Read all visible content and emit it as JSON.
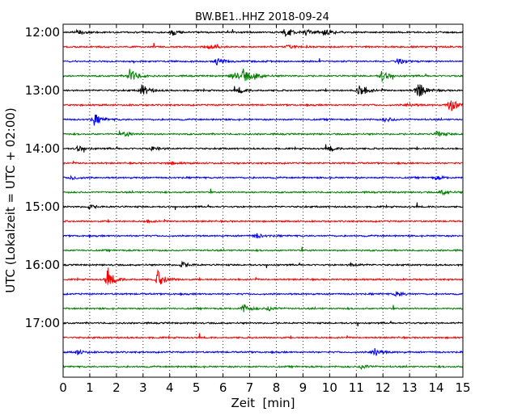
{
  "chart_data": {
    "type": "line",
    "title": "BW.BE1..HHZ 2018-09-24",
    "xlabel": "Zeit  [min]",
    "ylabel": "UTC (Lokalzeit = UTC + 02:00)",
    "xlim": [
      0,
      15
    ],
    "x_ticks": [
      "0",
      "1",
      "2",
      "3",
      "4",
      "5",
      "6",
      "7",
      "8",
      "9",
      "10",
      "11",
      "12",
      "13",
      "14",
      "15"
    ],
    "y_tick_labels": [
      "12:00",
      "13:00",
      "14:00",
      "15:00",
      "16:00",
      "17:00"
    ],
    "grid": "vertical dotted at every minute",
    "color_cycle": [
      "#000000",
      "#ff0000",
      "#0000ff",
      "#008000"
    ],
    "series": [
      {
        "start": "12:00",
        "color": "#000000",
        "events": [
          {
            "x": 0.55,
            "amp": 0.35
          },
          {
            "x": 4.1,
            "amp": 0.4
          },
          {
            "x": 8.35,
            "amp": 0.7
          },
          {
            "x": 9.1,
            "amp": 0.35
          },
          {
            "x": 9.8,
            "amp": 0.4
          }
        ]
      },
      {
        "start": "12:15",
        "color": "#ff0000",
        "events": [
          {
            "x": 5.4,
            "amp": 0.3
          },
          {
            "x": 8.4,
            "amp": 0.15
          }
        ]
      },
      {
        "start": "12:30",
        "color": "#0000ff",
        "events": [
          {
            "x": 5.75,
            "amp": 0.45
          },
          {
            "x": 12.55,
            "amp": 0.35
          }
        ]
      },
      {
        "start": "12:45",
        "color": "#008000",
        "events": [
          {
            "x": 2.5,
            "amp": 0.95
          },
          {
            "x": 6.35,
            "amp": 0.55
          },
          {
            "x": 6.75,
            "amp": 0.85
          },
          {
            "x": 7.2,
            "amp": 0.3
          },
          {
            "x": 11.95,
            "amp": 0.65
          }
        ]
      },
      {
        "start": "13:00",
        "color": "#000000",
        "events": [
          {
            "x": 2.95,
            "amp": 0.75
          },
          {
            "x": 6.6,
            "amp": 0.35
          },
          {
            "x": 11.1,
            "amp": 0.95
          },
          {
            "x": 13.3,
            "amp": 1.2
          }
        ]
      },
      {
        "start": "13:15",
        "color": "#ff0000",
        "events": [
          {
            "x": 14.5,
            "amp": 0.95
          },
          {
            "x": 12.9,
            "amp": 0.25
          }
        ]
      },
      {
        "start": "13:30",
        "color": "#0000ff",
        "events": [
          {
            "x": 1.15,
            "amp": 0.75
          },
          {
            "x": 12.1,
            "amp": 0.3
          }
        ]
      },
      {
        "start": "13:45",
        "color": "#008000",
        "events": [
          {
            "x": 2.3,
            "amp": 0.3
          },
          {
            "x": 14.05,
            "amp": 0.4
          }
        ]
      },
      {
        "start": "14:00",
        "color": "#000000",
        "events": [
          {
            "x": 0.55,
            "amp": 0.35
          },
          {
            "x": 3.35,
            "amp": 0.3
          },
          {
            "x": 10.0,
            "amp": 0.3
          }
        ]
      },
      {
        "start": "14:15",
        "color": "#ff0000",
        "events": [
          {
            "x": 4.0,
            "amp": 0.2
          }
        ]
      },
      {
        "start": "14:30",
        "color": "#0000ff",
        "events": [
          {
            "x": 0.3,
            "amp": 0.25
          },
          {
            "x": 13.95,
            "amp": 0.25
          }
        ]
      },
      {
        "start": "14:45",
        "color": "#008000",
        "events": [
          {
            "x": 14.2,
            "amp": 0.35
          }
        ]
      },
      {
        "start": "15:00",
        "color": "#000000",
        "events": [
          {
            "x": 0.95,
            "amp": 0.25
          }
        ]
      },
      {
        "start": "15:15",
        "color": "#ff0000",
        "events": [
          {
            "x": 3.1,
            "amp": 0.15
          }
        ]
      },
      {
        "start": "15:30",
        "color": "#0000ff",
        "events": [
          {
            "x": 7.2,
            "amp": 0.35
          }
        ]
      },
      {
        "start": "15:45",
        "color": "#008000",
        "events": []
      },
      {
        "start": "16:00",
        "color": "#000000",
        "events": [
          {
            "x": 4.45,
            "amp": 0.35
          },
          {
            "x": 10.8,
            "amp": 0.2
          }
        ]
      },
      {
        "start": "16:15",
        "color": "#ff0000",
        "events": [
          {
            "x": 1.65,
            "amp": 1.2
          },
          {
            "x": 3.55,
            "amp": 1.05
          }
        ]
      },
      {
        "start": "16:30",
        "color": "#0000ff",
        "events": [
          {
            "x": 12.5,
            "amp": 0.35
          }
        ]
      },
      {
        "start": "16:45",
        "color": "#008000",
        "events": [
          {
            "x": 6.75,
            "amp": 0.55
          },
          {
            "x": 7.7,
            "amp": 0.3
          }
        ]
      },
      {
        "start": "17:00",
        "color": "#000000",
        "events": []
      },
      {
        "start": "17:15",
        "color": "#ff0000",
        "events": []
      },
      {
        "start": "17:30",
        "color": "#0000ff",
        "events": [
          {
            "x": 0.5,
            "amp": 0.3
          },
          {
            "x": 11.65,
            "amp": 0.65
          }
        ]
      },
      {
        "start": "17:45",
        "color": "#008000",
        "events": [
          {
            "x": 11.2,
            "amp": 0.35
          }
        ]
      }
    ]
  }
}
